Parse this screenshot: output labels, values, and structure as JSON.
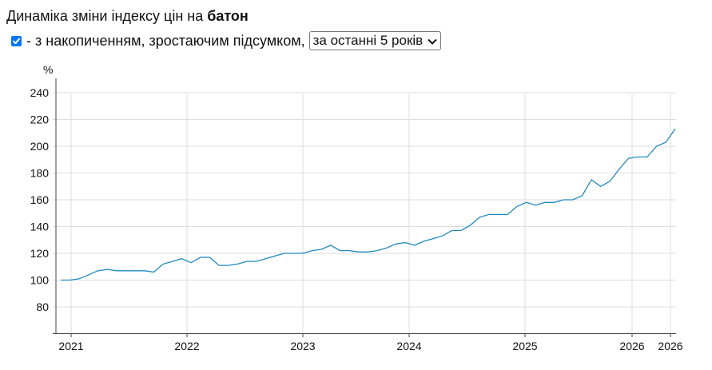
{
  "header": {
    "title_prefix": "Динаміка зміни індексу цін на ",
    "title_product": "батон",
    "checkbox_checked": true,
    "checkbox_label": "- з накопиченням, зростаючим підсумком,",
    "period_select": "за останні 5 років"
  },
  "chart_data": {
    "type": "line",
    "ylabel": "%",
    "ylim": [
      60,
      250
    ],
    "yticks": [
      80,
      100,
      120,
      140,
      160,
      180,
      200,
      220,
      240
    ],
    "xticks": [
      "2021",
      "2022",
      "2023",
      "2024",
      "2025",
      "2026",
      "2026"
    ],
    "grid": true,
    "line_color": "#1f8ac0",
    "series": [
      {
        "values": [
          [
            "2020-12",
            100
          ],
          [
            "2021-01",
            100
          ],
          [
            "2021-02",
            101
          ],
          [
            "2021-03",
            104
          ],
          [
            "2021-04",
            107
          ],
          [
            "2021-05",
            108
          ],
          [
            "2021-06",
            107
          ],
          [
            "2021-07",
            107
          ],
          [
            "2021-08",
            107
          ],
          [
            "2021-09",
            107
          ],
          [
            "2021-10",
            106
          ],
          [
            "2021-11",
            112
          ],
          [
            "2021-12",
            114
          ],
          [
            "2022-01",
            116
          ],
          [
            "2022-02",
            113
          ],
          [
            "2022-03",
            117
          ],
          [
            "2022-04",
            117
          ],
          [
            "2022-05",
            111
          ],
          [
            "2022-06",
            111
          ],
          [
            "2022-07",
            112
          ],
          [
            "2022-08",
            114
          ],
          [
            "2022-09",
            114
          ],
          [
            "2022-10",
            116
          ],
          [
            "2022-11",
            118
          ],
          [
            "2022-12",
            120
          ],
          [
            "2023-01",
            120
          ],
          [
            "2023-02",
            120
          ],
          [
            "2023-03",
            122
          ],
          [
            "2023-04",
            123
          ],
          [
            "2023-05",
            126
          ],
          [
            "2023-06",
            122
          ],
          [
            "2023-07",
            122
          ],
          [
            "2023-08",
            121
          ],
          [
            "2023-09",
            121
          ],
          [
            "2023-10",
            122
          ],
          [
            "2023-11",
            124
          ],
          [
            "2023-12",
            127
          ],
          [
            "2024-01",
            128
          ],
          [
            "2024-02",
            126
          ],
          [
            "2024-03",
            129
          ],
          [
            "2024-04",
            131
          ],
          [
            "2024-05",
            133
          ],
          [
            "2024-06",
            137
          ],
          [
            "2024-07",
            137
          ],
          [
            "2024-08",
            141
          ],
          [
            "2024-09",
            147
          ],
          [
            "2024-10",
            149
          ],
          [
            "2024-11",
            149
          ],
          [
            "2024-12",
            149
          ],
          [
            "2025-01",
            155
          ],
          [
            "2025-02",
            158
          ],
          [
            "2025-03",
            156
          ],
          [
            "2025-04",
            158
          ],
          [
            "2025-05",
            158
          ],
          [
            "2025-06",
            160
          ],
          [
            "2025-07",
            160
          ],
          [
            "2025-08",
            163
          ],
          [
            "2025-09",
            175
          ],
          [
            "2025-10",
            170
          ],
          [
            "2025-11",
            174
          ],
          [
            "2025-12",
            183
          ],
          [
            "2026-01",
            191
          ],
          [
            "2026-02",
            192
          ],
          [
            "2026-03",
            192
          ],
          [
            "2026-04",
            200
          ],
          [
            "2026-05",
            203
          ],
          [
            "2026-06",
            213
          ]
        ]
      }
    ]
  }
}
